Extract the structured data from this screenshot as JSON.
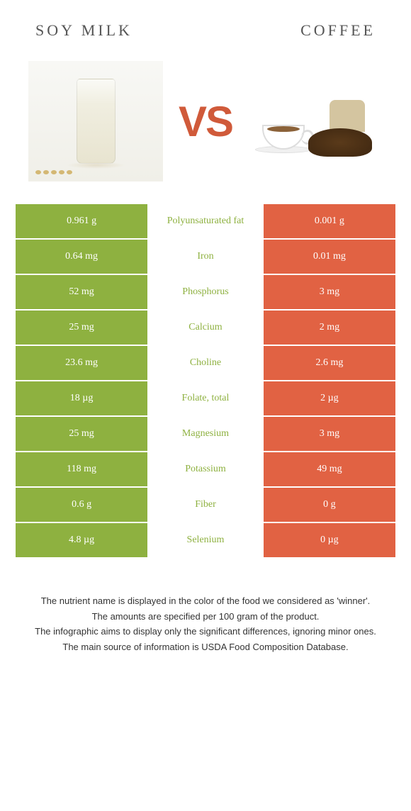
{
  "header": {
    "left_title": "Soy milk",
    "right_title": "Coffee",
    "vs_text": "VS"
  },
  "colors": {
    "left_bg": "#8eb140",
    "right_bg": "#e16243",
    "left_text": "#ffffff",
    "right_text": "#ffffff",
    "nutrient_winner_left": "#8eb140",
    "nutrient_winner_right": "#e16243"
  },
  "nutrients": [
    {
      "name": "Polyunsaturated fat",
      "left": "0.961 g",
      "right": "0.001 g",
      "winner": "left"
    },
    {
      "name": "Iron",
      "left": "0.64 mg",
      "right": "0.01 mg",
      "winner": "left"
    },
    {
      "name": "Phosphorus",
      "left": "52 mg",
      "right": "3 mg",
      "winner": "left"
    },
    {
      "name": "Calcium",
      "left": "25 mg",
      "right": "2 mg",
      "winner": "left"
    },
    {
      "name": "Choline",
      "left": "23.6 mg",
      "right": "2.6 mg",
      "winner": "left"
    },
    {
      "name": "Folate, total",
      "left": "18 µg",
      "right": "2 µg",
      "winner": "left"
    },
    {
      "name": "Magnesium",
      "left": "25 mg",
      "right": "3 mg",
      "winner": "left"
    },
    {
      "name": "Potassium",
      "left": "118 mg",
      "right": "49 mg",
      "winner": "left"
    },
    {
      "name": "Fiber",
      "left": "0.6 g",
      "right": "0 g",
      "winner": "left"
    },
    {
      "name": "Selenium",
      "left": "4.8 µg",
      "right": "0 µg",
      "winner": "left"
    }
  ],
  "footer": {
    "line1": "The nutrient name is displayed in the color of the food we considered as 'winner'.",
    "line2": "The amounts are specified per 100 gram of the product.",
    "line3": "The infographic aims to display only the significant differences, ignoring minor ones.",
    "line4": "The main source of information is USDA Food Composition Database."
  }
}
